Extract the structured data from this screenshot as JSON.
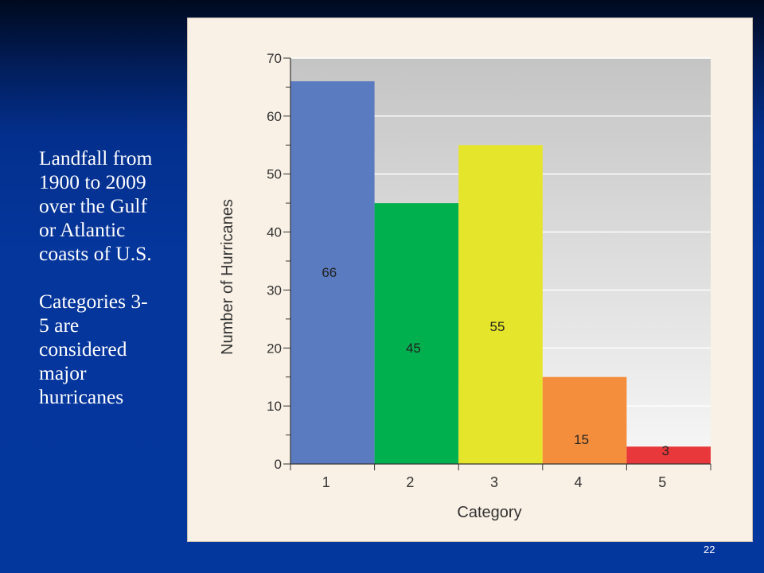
{
  "slide": {
    "note_paragraphs": [
      "Landfall from 1900 to 2009 over the Gulf or Atlantic coasts of U.S.",
      "Categories 3-5 are considered major hurricanes"
    ],
    "note_lines": [
      [
        "Landfall from",
        "1900 to 2009",
        "over the Gulf",
        "or Atlantic",
        "coasts of U.S."
      ],
      [
        "Categories 3-",
        "5 are",
        "considered",
        "major",
        "hurricanes"
      ]
    ],
    "slide_number": "22"
  },
  "chart_data": {
    "type": "bar",
    "categories": [
      "1",
      "2",
      "3",
      "4",
      "5"
    ],
    "values": [
      66,
      45,
      55,
      15,
      3
    ],
    "data_labels": [
      "66",
      "45",
      "55",
      "15",
      "3"
    ],
    "colors": [
      "#5a7bc0",
      "#00b04f",
      "#e5e52b",
      "#f48d3c",
      "#e8383b"
    ],
    "title": "",
    "xlabel": "Category",
    "ylabel": "Number of Hurricanes",
    "ylim": [
      0,
      70
    ],
    "y_ticks": [
      0,
      10,
      20,
      30,
      40,
      50,
      60,
      70
    ],
    "y_minor_ticks": [
      5,
      15,
      25,
      35,
      45,
      55,
      65
    ],
    "grid": true,
    "plot_background": "gradient light gray to white",
    "legend": false
  }
}
